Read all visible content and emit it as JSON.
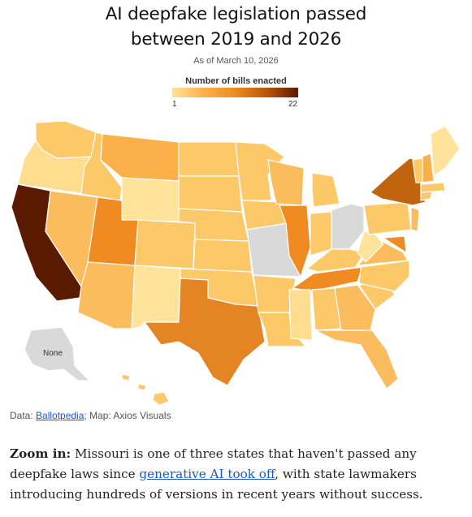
{
  "header": {
    "title_line1": "AI deepfake legislation passed",
    "title_line2": "between 2019 and 2026",
    "as_of": "As of March 10, 2026"
  },
  "legend": {
    "title": "Number of bills enacted",
    "min": "1",
    "max": "22",
    "colors": [
      "#ffe39a",
      "#fbb04a",
      "#ef8b20",
      "#b9560c",
      "#5a1a00"
    ]
  },
  "map": {
    "alaska_label": "None",
    "no_data_color": "#d9d9d9",
    "states_none": [
      "Missouri",
      "Ohio",
      "Alaska"
    ],
    "highest_state": "California"
  },
  "source": {
    "prefix": "Data: ",
    "link_text": "Ballotpedia",
    "suffix": "; Map: Axios Visuals"
  },
  "article": {
    "lead": "Zoom in:",
    "text1": " Missouri is one of three states that haven't passed any deepfake laws since ",
    "link_text": "generative AI took off",
    "text2": ", with state lawmakers introducing hundreds of versions in recent years without success."
  }
}
